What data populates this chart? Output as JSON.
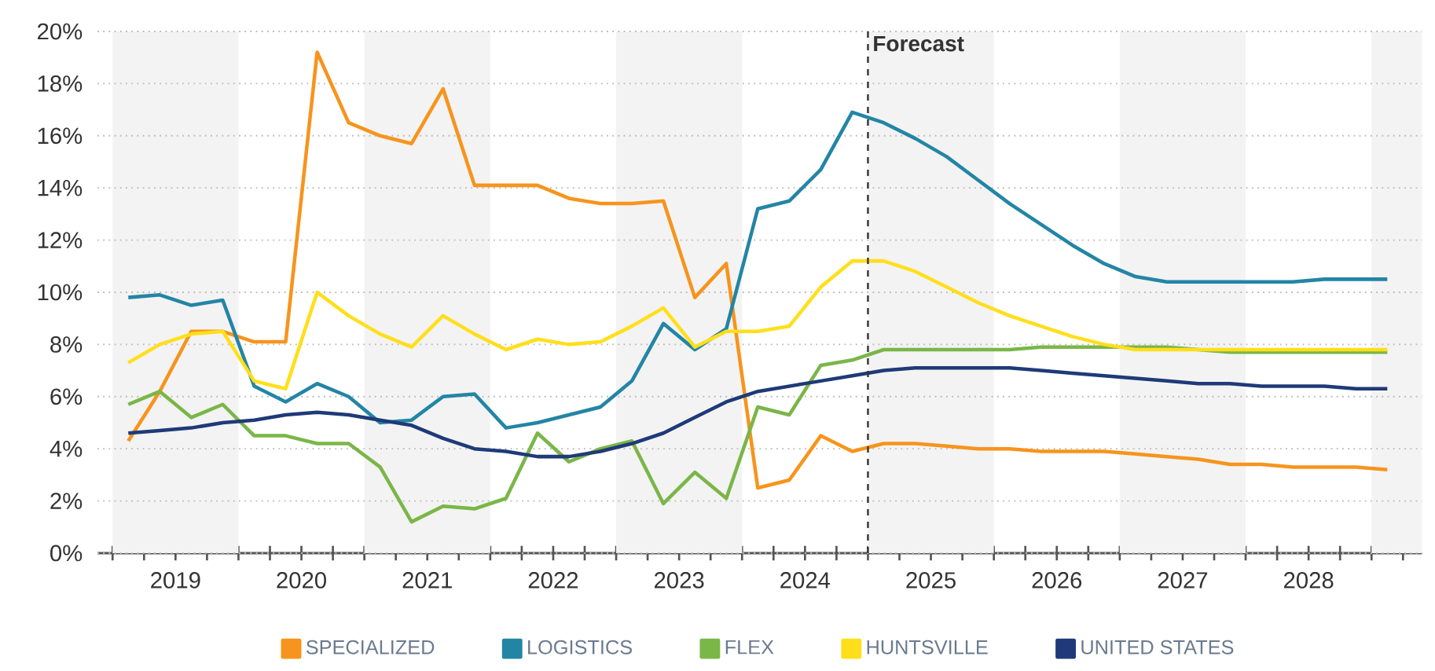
{
  "chart_data": {
    "type": "line",
    "x": [
      2019.125,
      2019.375,
      2019.625,
      2019.875,
      2020.125,
      2020.375,
      2020.625,
      2020.875,
      2021.125,
      2021.375,
      2021.625,
      2021.875,
      2022.125,
      2022.375,
      2022.625,
      2022.875,
      2023.125,
      2023.375,
      2023.625,
      2023.875,
      2024.125,
      2024.375,
      2024.625,
      2024.875,
      2025.125,
      2025.375,
      2025.625,
      2025.875,
      2026.125,
      2026.375,
      2026.625,
      2026.875,
      2027.125,
      2027.375,
      2027.625,
      2027.875,
      2028.125,
      2028.375,
      2028.625,
      2028.875,
      2029.125
    ],
    "series": [
      {
        "name": "SPECIALIZED",
        "color": "#f7941d",
        "values": [
          4.3,
          6.2,
          8.5,
          8.5,
          8.1,
          8.1,
          19.2,
          16.5,
          16.0,
          15.7,
          17.8,
          14.1,
          14.1,
          14.1,
          13.6,
          13.4,
          13.4,
          13.5,
          9.8,
          11.1,
          2.5,
          2.8,
          4.5,
          3.9,
          4.2,
          4.2,
          4.1,
          4.0,
          4.0,
          3.9,
          3.9,
          3.9,
          3.8,
          3.7,
          3.6,
          3.4,
          3.4,
          3.3,
          3.3,
          3.3,
          3.2
        ]
      },
      {
        "name": "LOGISTICS",
        "color": "#2385a5",
        "values": [
          9.8,
          9.9,
          9.5,
          9.7,
          6.4,
          5.8,
          6.5,
          6.0,
          5.0,
          5.1,
          6.0,
          6.1,
          4.8,
          5.0,
          5.3,
          5.6,
          6.6,
          8.8,
          7.8,
          8.6,
          13.2,
          13.5,
          14.7,
          16.9,
          16.5,
          15.9,
          15.2,
          14.3,
          13.4,
          12.6,
          11.8,
          11.1,
          10.6,
          10.4,
          10.4,
          10.4,
          10.4,
          10.4,
          10.5,
          10.5,
          10.5
        ]
      },
      {
        "name": "FLEX",
        "color": "#7ab648",
        "values": [
          5.7,
          6.2,
          5.2,
          5.7,
          4.5,
          4.5,
          4.2,
          4.2,
          3.3,
          1.2,
          1.8,
          1.7,
          2.1,
          4.6,
          3.5,
          4.0,
          4.3,
          1.9,
          3.1,
          2.1,
          5.6,
          5.3,
          7.2,
          7.4,
          7.8,
          7.8,
          7.8,
          7.8,
          7.8,
          7.9,
          7.9,
          7.9,
          7.9,
          7.9,
          7.8,
          7.7,
          7.7,
          7.7,
          7.7,
          7.7,
          7.7
        ]
      },
      {
        "name": "HUNTSVILLE",
        "color": "#ffdf1b",
        "values": [
          7.3,
          8.0,
          8.4,
          8.5,
          6.6,
          6.3,
          10.0,
          9.1,
          8.4,
          7.9,
          9.1,
          8.4,
          7.8,
          8.2,
          8.0,
          8.1,
          8.7,
          9.4,
          7.9,
          8.5,
          8.5,
          8.7,
          10.2,
          11.2,
          11.2,
          10.8,
          10.2,
          9.6,
          9.1,
          8.7,
          8.3,
          8.0,
          7.8,
          7.8,
          7.8,
          7.8,
          7.8,
          7.8,
          7.8,
          7.8,
          7.8
        ]
      },
      {
        "name": "UNITED STATES",
        "color": "#1f3a78",
        "values": [
          4.6,
          4.7,
          4.8,
          5.0,
          5.1,
          5.3,
          5.4,
          5.3,
          5.1,
          4.9,
          4.4,
          4.0,
          3.9,
          3.7,
          3.7,
          3.9,
          4.2,
          4.6,
          5.2,
          5.8,
          6.2,
          6.4,
          6.6,
          6.8,
          7.0,
          7.1,
          7.1,
          7.1,
          7.1,
          7.0,
          6.9,
          6.8,
          6.7,
          6.6,
          6.5,
          6.5,
          6.4,
          6.4,
          6.4,
          6.3,
          6.3
        ]
      }
    ],
    "xlim": [
      2018.88,
      2029.4
    ],
    "xticks": [
      {
        "value": 2019,
        "label": null
      },
      {
        "value": 2019.25,
        "label": null
      },
      {
        "value": 2019.5,
        "label": "2019"
      },
      {
        "value": 2019.75,
        "label": null
      },
      {
        "value": 2020,
        "label": null
      },
      {
        "value": 2020.25,
        "label": null
      },
      {
        "value": 2020.5,
        "label": "2020"
      },
      {
        "value": 2020.75,
        "label": null
      },
      {
        "value": 2021,
        "label": null
      },
      {
        "value": 2021.25,
        "label": null
      },
      {
        "value": 2021.5,
        "label": "2021"
      },
      {
        "value": 2021.75,
        "label": null
      },
      {
        "value": 2022,
        "label": null
      },
      {
        "value": 2022.25,
        "label": null
      },
      {
        "value": 2022.5,
        "label": "2022"
      },
      {
        "value": 2022.75,
        "label": null
      },
      {
        "value": 2023,
        "label": null
      },
      {
        "value": 2023.25,
        "label": null
      },
      {
        "value": 2023.5,
        "label": "2023"
      },
      {
        "value": 2023.75,
        "label": null
      },
      {
        "value": 2024,
        "label": null
      },
      {
        "value": 2024.25,
        "label": null
      },
      {
        "value": 2024.5,
        "label": "2024"
      },
      {
        "value": 2024.75,
        "label": null
      },
      {
        "value": 2025,
        "label": null
      },
      {
        "value": 2025.25,
        "label": null
      },
      {
        "value": 2025.5,
        "label": "2025"
      },
      {
        "value": 2025.75,
        "label": null
      },
      {
        "value": 2026,
        "label": null
      },
      {
        "value": 2026.25,
        "label": null
      },
      {
        "value": 2026.5,
        "label": "2026"
      },
      {
        "value": 2026.75,
        "label": null
      },
      {
        "value": 2027,
        "label": null
      },
      {
        "value": 2027.25,
        "label": null
      },
      {
        "value": 2027.5,
        "label": "2027"
      },
      {
        "value": 2027.75,
        "label": null
      },
      {
        "value": 2028,
        "label": null
      },
      {
        "value": 2028.25,
        "label": null
      },
      {
        "value": 2028.5,
        "label": "2028"
      },
      {
        "value": 2028.75,
        "label": null
      },
      {
        "value": 2029,
        "label": null
      },
      {
        "value": 2029.25,
        "label": null
      }
    ],
    "ylim": [
      0,
      20
    ],
    "yticks": [
      {
        "value": 0,
        "label": "0%"
      },
      {
        "value": 2,
        "label": "2%"
      },
      {
        "value": 4,
        "label": "4%"
      },
      {
        "value": 6,
        "label": "6%"
      },
      {
        "value": 8,
        "label": "8%"
      },
      {
        "value": 10,
        "label": "10%"
      },
      {
        "value": 12,
        "label": "12%"
      },
      {
        "value": 14,
        "label": "14%"
      },
      {
        "value": 16,
        "label": "16%"
      },
      {
        "value": 18,
        "label": "18%"
      },
      {
        "value": 20,
        "label": "20%"
      }
    ],
    "grid": "y",
    "legend": "bottom",
    "line_style": "solid",
    "ref_lines": [
      {
        "axis": "x",
        "value": 2025,
        "label": "Forecast",
        "color": "#333333",
        "line_style": "dashed"
      }
    ],
    "bands": [
      {
        "axis": "x",
        "from": 2019,
        "to": 2020,
        "color": "#f3f3f3"
      },
      {
        "axis": "x",
        "from": 2021,
        "to": 2022,
        "color": "#f3f3f3"
      },
      {
        "axis": "x",
        "from": 2023,
        "to": 2024,
        "color": "#f3f3f3"
      },
      {
        "axis": "x",
        "from": 2025,
        "to": 2026,
        "color": "#f3f3f3"
      },
      {
        "axis": "x",
        "from": 2027,
        "to": 2028,
        "color": "#f3f3f3"
      },
      {
        "axis": "x",
        "from": 2029,
        "to": 2029.4,
        "color": "#f3f3f3"
      }
    ]
  }
}
